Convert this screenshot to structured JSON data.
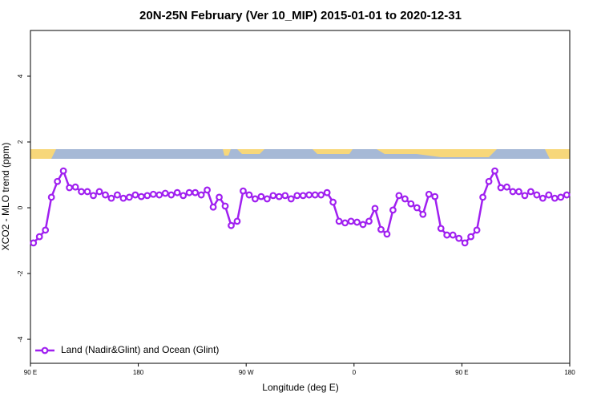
{
  "chart_data": {
    "type": "line",
    "title": "20N-25N February (Ver 10_MIP)   2015-01-01 to 2020-12-31",
    "x_label": "Longitude (deg E)",
    "y_label": "XCO2 - MLO trend (ppm)",
    "xlim": [
      90,
      540
    ],
    "ylim": [
      -4.73,
      5.39
    ],
    "xticks": [
      {
        "value": 90,
        "label": "90 E"
      },
      180,
      {
        "value": 270,
        "label": "90 W"
      },
      {
        "value": 360,
        "label": "0"
      },
      {
        "value": 450,
        "label": "90 E"
      },
      {
        "value": 540,
        "label": "180"
      }
    ],
    "yticks": [
      4,
      2,
      0,
      -2,
      -4
    ],
    "legend": "bottom-left",
    "x": [
      92.5,
      97.5,
      102.5,
      107.5,
      112.5,
      117.5,
      122.5,
      127.5,
      132.5,
      137.5,
      142.5,
      147.5,
      152.5,
      157.5,
      162.5,
      167.5,
      172.5,
      177.5,
      182.5,
      187.5,
      192.5,
      197.5,
      202.5,
      207.5,
      212.5,
      217.5,
      222.5,
      227.5,
      232.5,
      237.5,
      242.5,
      247.5,
      252.5,
      257.5,
      262.5,
      267.5,
      272.5,
      277.5,
      282.5,
      287.5,
      292.5,
      297.5,
      302.5,
      307.5,
      312.5,
      317.5,
      322.5,
      327.5,
      332.5,
      337.5,
      342.5,
      347.5,
      352.5,
      357.5,
      362.5,
      367.5,
      372.5,
      377.5,
      382.5,
      387.5,
      392.5,
      397.5,
      402.5,
      407.5,
      412.5,
      417.5,
      422.5,
      427.5,
      432.5,
      437.5,
      442.5,
      447.5,
      452.5,
      457.5,
      462.5,
      467.5,
      472.5,
      477.5,
      482.5,
      487.5,
      492.5,
      497.5,
      502.5,
      507.5,
      512.5,
      517.5,
      522.5,
      527.5,
      532.5,
      537.5
    ],
    "series": [
      {
        "name": "Land (Nadir&Glint) and Ocean (Glint)",
        "color": "#a020f0",
        "values": [
          -1.07,
          -0.88,
          -0.68,
          0.32,
          0.8,
          1.12,
          0.61,
          0.63,
          0.49,
          0.49,
          0.37,
          0.49,
          0.39,
          0.29,
          0.39,
          0.29,
          0.32,
          0.39,
          0.34,
          0.37,
          0.41,
          0.39,
          0.44,
          0.39,
          0.46,
          0.37,
          0.46,
          0.46,
          0.39,
          0.54,
          0.02,
          0.32,
          0.05,
          -0.54,
          -0.41,
          0.51,
          0.39,
          0.27,
          0.34,
          0.27,
          0.37,
          0.34,
          0.37,
          0.27,
          0.37,
          0.37,
          0.39,
          0.39,
          0.39,
          0.46,
          0.17,
          -0.41,
          -0.46,
          -0.41,
          -0.44,
          -0.51,
          -0.41,
          -0.02,
          -0.66,
          -0.8,
          -0.07,
          0.37,
          0.27,
          0.12,
          0,
          -0.2,
          0.41,
          0.34,
          -0.63,
          -0.83,
          -0.83,
          -0.93,
          -1.07,
          -0.88,
          -0.68,
          0.32,
          0.8,
          1.12,
          0.61,
          0.63,
          0.49,
          0.49,
          0.37,
          0.49,
          0.39,
          0.29,
          0.39,
          0.29,
          0.32,
          0.39
        ]
      }
    ]
  }
}
